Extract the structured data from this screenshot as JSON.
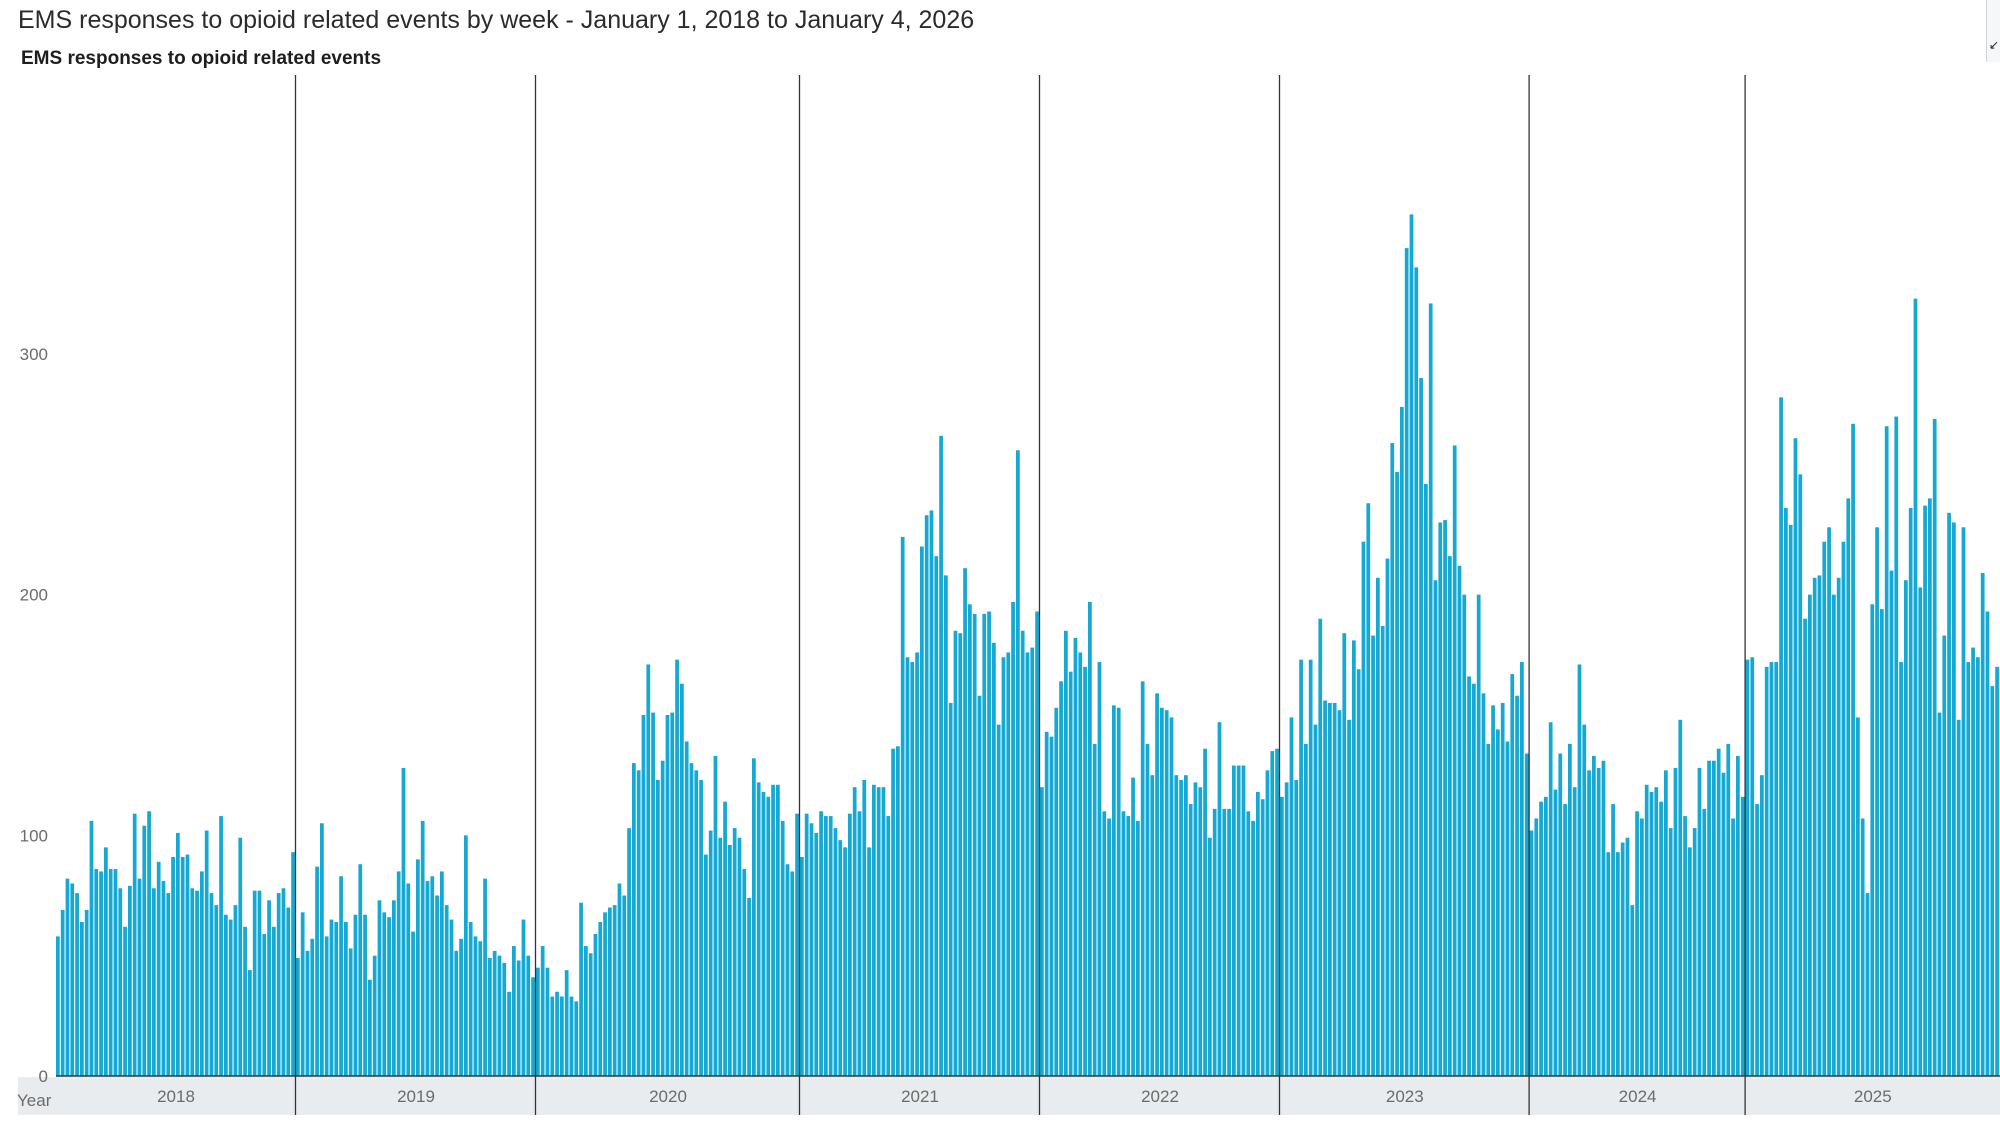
{
  "page": {
    "title": "EMS responses to opioid related events by week - January 1, 2018 to January 4, 2026",
    "chart_heading": "EMS responses to opioid related events",
    "x_axis_caption": "Year",
    "corner_icon": "collapse-arrow-icon"
  },
  "colors": {
    "bar": "#15a8d2",
    "divider": "#333333",
    "axis_band": "#e9ecef",
    "tick_text": "#6b6b6b"
  },
  "chart_data": {
    "type": "bar",
    "title": "EMS responses to opioid related events",
    "xlabel": "Year",
    "ylabel": "",
    "ylim": [
      0,
      350
    ],
    "y_ticks": [
      0,
      100,
      200,
      300
    ],
    "grid": false,
    "years": [
      {
        "label": "2018",
        "values": [
          58,
          69,
          82,
          80,
          76,
          64,
          69,
          106,
          86,
          85,
          95,
          86,
          86,
          78,
          62,
          79,
          109,
          82,
          104,
          110,
          78,
          89,
          81,
          76,
          91,
          101,
          91,
          92,
          78,
          77,
          85,
          102,
          76,
          71,
          108,
          67,
          65,
          71,
          99,
          62,
          44,
          77,
          77,
          59,
          73,
          62,
          76,
          78,
          70,
          93
        ]
      },
      {
        "label": "2019",
        "values": [
          49,
          68,
          52,
          57,
          87,
          105,
          58,
          65,
          64,
          83,
          64,
          53,
          67,
          88,
          67,
          40,
          50,
          73,
          68,
          66,
          73,
          85,
          128,
          80,
          60,
          90,
          106,
          81,
          83,
          75,
          85,
          71,
          65,
          52,
          57,
          100,
          64,
          58,
          56,
          82,
          49,
          52,
          50,
          47,
          35,
          54,
          48,
          65,
          50,
          41
        ]
      },
      {
        "label": "2020",
        "values": [
          45,
          54,
          45,
          33,
          35,
          33,
          44,
          33,
          31,
          72,
          54,
          51,
          59,
          64,
          68,
          70,
          71,
          80,
          75,
          103,
          130,
          127,
          150,
          171,
          151,
          123,
          131,
          150,
          151,
          173,
          163,
          139,
          130,
          127,
          123,
          92,
          102,
          133,
          99,
          114,
          96,
          103,
          99,
          86,
          74,
          132,
          122,
          118,
          116,
          121,
          121,
          106,
          88,
          85,
          109
        ]
      },
      {
        "label": "2021",
        "values": [
          91,
          109,
          105,
          101,
          110,
          108,
          108,
          103,
          98,
          95,
          109,
          120,
          110,
          123,
          95,
          121,
          120,
          120,
          108,
          136,
          137,
          224,
          174,
          172,
          176,
          220,
          233,
          235,
          216,
          266,
          208,
          155,
          185,
          184,
          211,
          196,
          192,
          158,
          192,
          193,
          180,
          146,
          174,
          176,
          197,
          260,
          185,
          176,
          178,
          193
        ]
      },
      {
        "label": "2022",
        "values": [
          120,
          143,
          141,
          153,
          164,
          185,
          168,
          182,
          176,
          170,
          197,
          138,
          172,
          110,
          107,
          154,
          153,
          110,
          108,
          124,
          106,
          164,
          138,
          125,
          159,
          153,
          152,
          149,
          125,
          123,
          125,
          113,
          122,
          120,
          136,
          99,
          111,
          147,
          111,
          111,
          129,
          129,
          129,
          110,
          106,
          118,
          115,
          127,
          135,
          136
        ]
      },
      {
        "label": "2023",
        "values": [
          116,
          122,
          149,
          123,
          173,
          138,
          173,
          146,
          190,
          156,
          155,
          155,
          152,
          184,
          148,
          181,
          169,
          222,
          238,
          183,
          207,
          187,
          215,
          263,
          251,
          278,
          344,
          358,
          336,
          290,
          246,
          321,
          206,
          230,
          231,
          216,
          262,
          212,
          200,
          166,
          163,
          200,
          159,
          138,
          154,
          144,
          155,
          139,
          167,
          158,
          172,
          134
        ]
      },
      {
        "label": "2024",
        "values": [
          102,
          107,
          114,
          116,
          147,
          119,
          134,
          113,
          138,
          120,
          171,
          146,
          127,
          133,
          128,
          131,
          93,
          113,
          93,
          97,
          99,
          71,
          110,
          107,
          121,
          118,
          120,
          114,
          127,
          103,
          128,
          148,
          108,
          95,
          103,
          128,
          111,
          131,
          131,
          136,
          126,
          138,
          107,
          133,
          116
        ]
      },
      {
        "label": "2025",
        "values": [
          173,
          174,
          113,
          125,
          170,
          172,
          172,
          282,
          236,
          229,
          265,
          250,
          190,
          200,
          207,
          208,
          222,
          228,
          200,
          207,
          222,
          240,
          271,
          149,
          107,
          76,
          196,
          228,
          194,
          270,
          210,
          274,
          172,
          206,
          236,
          323,
          203,
          237,
          240,
          273,
          151,
          183,
          234,
          230,
          148,
          228,
          172,
          178,
          174,
          209,
          193,
          162,
          170
        ]
      }
    ]
  }
}
